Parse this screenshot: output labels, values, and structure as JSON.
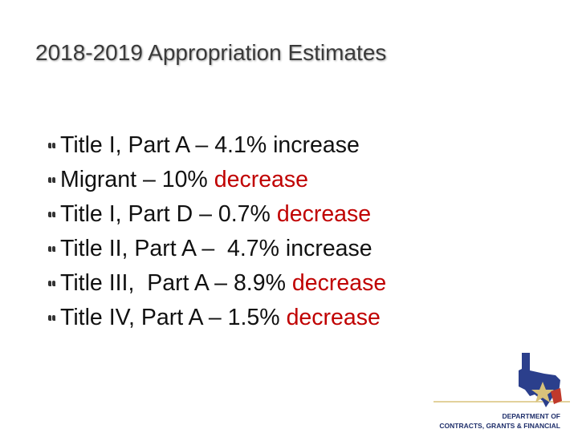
{
  "title": "2018-2019 Appropriation Estimates",
  "highlight_color": "#c00000",
  "bullets": [
    {
      "text": "Title I, Part A – 4.1% increase"
    },
    {
      "text": "Migrant – 10%",
      "highlight": "decrease"
    },
    {
      "text": "Title I, Part D – 0.7%",
      "highlight": "decrease"
    },
    {
      "text": "Title II, Part A –  4.7% increase"
    },
    {
      "text": "Title III,  Part A – 8.9%",
      "highlight": "decrease"
    },
    {
      "text": "Title IV, Part A – 1.5%",
      "highlight": "decrease"
    }
  ],
  "logo": {
    "lines": [
      "DEPARTMENT OF",
      "CONTRACTS, GRANTS & FINANCIAL"
    ]
  }
}
